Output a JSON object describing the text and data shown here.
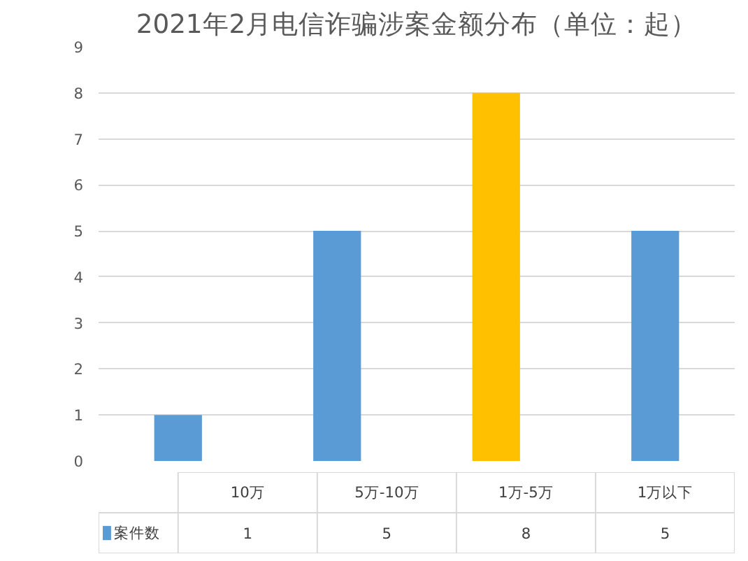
{
  "chart_data": {
    "type": "bar",
    "title": "2021年2月电信诈骗涉案金额分布（单位：起）",
    "categories": [
      "10万",
      "5万-10万",
      "1万-5万",
      "1万以下"
    ],
    "series": [
      {
        "name": "案件数",
        "color": "#5b9bd5",
        "colors": [
          "#5b9bd5",
          "#5b9bd5",
          "#ffc000",
          "#5b9bd5"
        ],
        "values": [
          1,
          5,
          8,
          5
        ]
      }
    ],
    "ylim": [
      0,
      9
    ],
    "yticks": [
      0,
      1,
      2,
      3,
      4,
      5,
      6,
      7,
      8,
      9
    ],
    "grid": "y",
    "data_labels": true,
    "legend": "bottom"
  }
}
